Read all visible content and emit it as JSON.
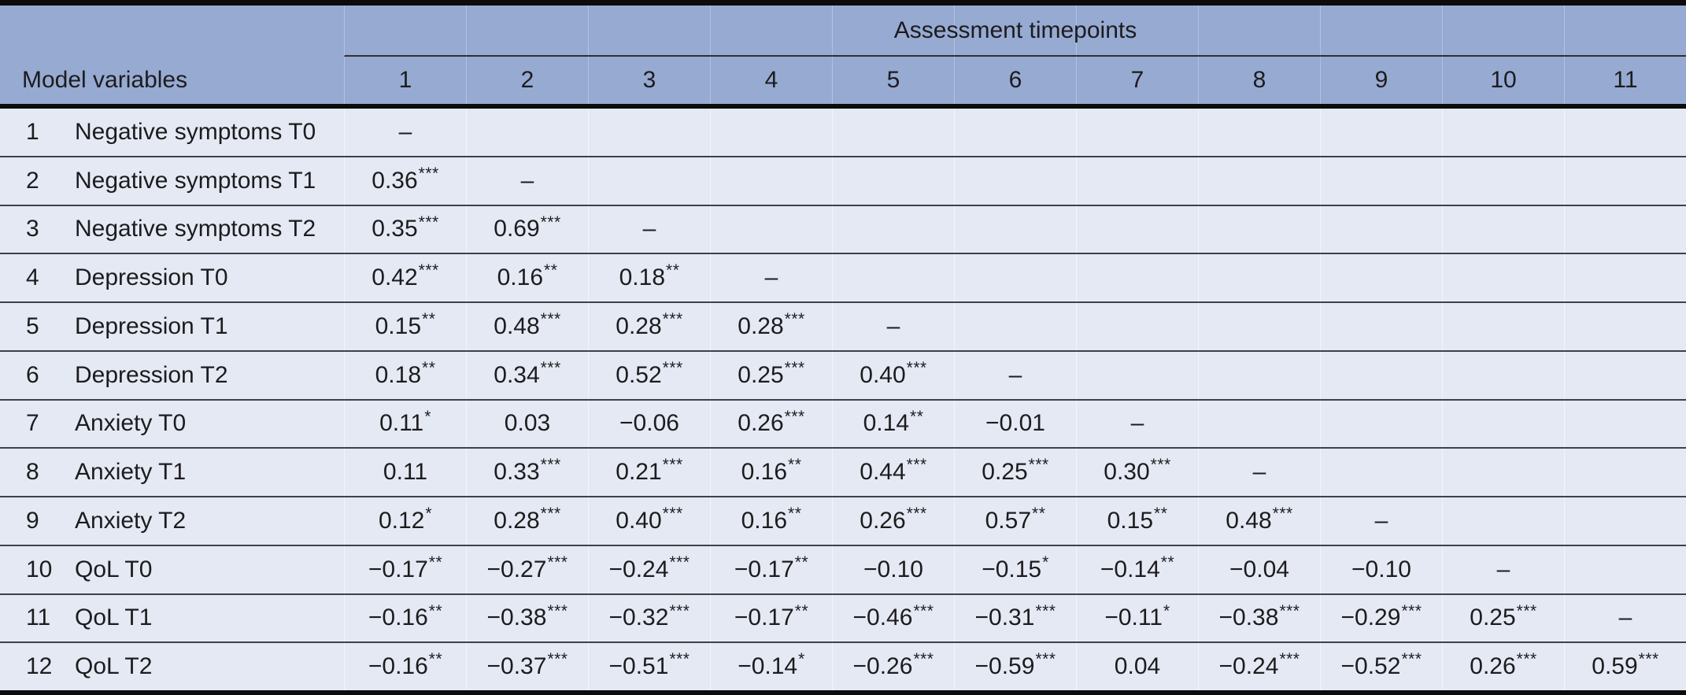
{
  "table": {
    "group_header": "Assessment timepoints",
    "row_header_label": "Model variables",
    "columns": [
      "1",
      "2",
      "3",
      "4",
      "5",
      "6",
      "7",
      "8",
      "9",
      "10",
      "11"
    ],
    "diagonal_marker": "–",
    "rows": [
      {
        "num": "1",
        "label": "Negative symptoms T0",
        "values": [
          "–",
          "",
          "",
          "",
          "",
          "",
          "",
          "",
          "",
          "",
          ""
        ]
      },
      {
        "num": "2",
        "label": "Negative symptoms T1",
        "values": [
          "0.36***",
          "–",
          "",
          "",
          "",
          "",
          "",
          "",
          "",
          "",
          ""
        ]
      },
      {
        "num": "3",
        "label": "Negative symptoms T2",
        "values": [
          "0.35***",
          "0.69***",
          "–",
          "",
          "",
          "",
          "",
          "",
          "",
          "",
          ""
        ]
      },
      {
        "num": "4",
        "label": "Depression T0",
        "values": [
          "0.42***",
          "0.16**",
          "0.18**",
          "–",
          "",
          "",
          "",
          "",
          "",
          "",
          ""
        ]
      },
      {
        "num": "5",
        "label": "Depression T1",
        "values": [
          "0.15**",
          "0.48***",
          "0.28***",
          "0.28***",
          "–",
          "",
          "",
          "",
          "",
          "",
          ""
        ]
      },
      {
        "num": "6",
        "label": "Depression T2",
        "values": [
          "0.18**",
          "0.34***",
          "0.52***",
          "0.25***",
          "0.40***",
          "–",
          "",
          "",
          "",
          "",
          ""
        ]
      },
      {
        "num": "7",
        "label": "Anxiety T0",
        "values": [
          "0.11*",
          "0.03",
          "−0.06",
          "0.26***",
          "0.14**",
          "−0.01",
          "–",
          "",
          "",
          "",
          ""
        ]
      },
      {
        "num": "8",
        "label": "Anxiety T1",
        "values": [
          "0.11",
          "0.33***",
          "0.21***",
          "0.16**",
          "0.44***",
          "0.25***",
          "0.30***",
          "–",
          "",
          "",
          ""
        ]
      },
      {
        "num": "9",
        "label": "Anxiety T2",
        "values": [
          "0.12*",
          "0.28***",
          "0.40***",
          "0.16**",
          "0.26***",
          "0.57**",
          "0.15**",
          "0.48***",
          "–",
          "",
          ""
        ]
      },
      {
        "num": "10",
        "label": "QoL T0",
        "values": [
          "−0.17**",
          "−0.27***",
          "−0.24***",
          "−0.17**",
          "−0.10",
          "−0.15*",
          "−0.14**",
          "−0.04",
          "−0.10",
          "–",
          ""
        ]
      },
      {
        "num": "11",
        "label": "QoL T1",
        "values": [
          "−0.16**",
          "−0.38***",
          "−0.32***",
          "−0.17**",
          "−0.46***",
          "−0.31***",
          "−0.11*",
          "−0.38***",
          "−0.29***",
          "0.25***",
          "–"
        ]
      },
      {
        "num": "12",
        "label": "QoL T2",
        "values": [
          "−0.16**",
          "−0.37***",
          "−0.51***",
          "−0.14*",
          "−0.26***",
          "−0.59***",
          "0.04",
          "−0.24***",
          "−0.52***",
          "0.26***",
          "0.59***"
        ]
      }
    ],
    "colors": {
      "header_bg": "#97aad2",
      "body_bg": "#e5e9f4",
      "heavy_rule": "#0c0c0c",
      "row_divider": "#3e4148",
      "text": "#1c1c1e"
    }
  }
}
